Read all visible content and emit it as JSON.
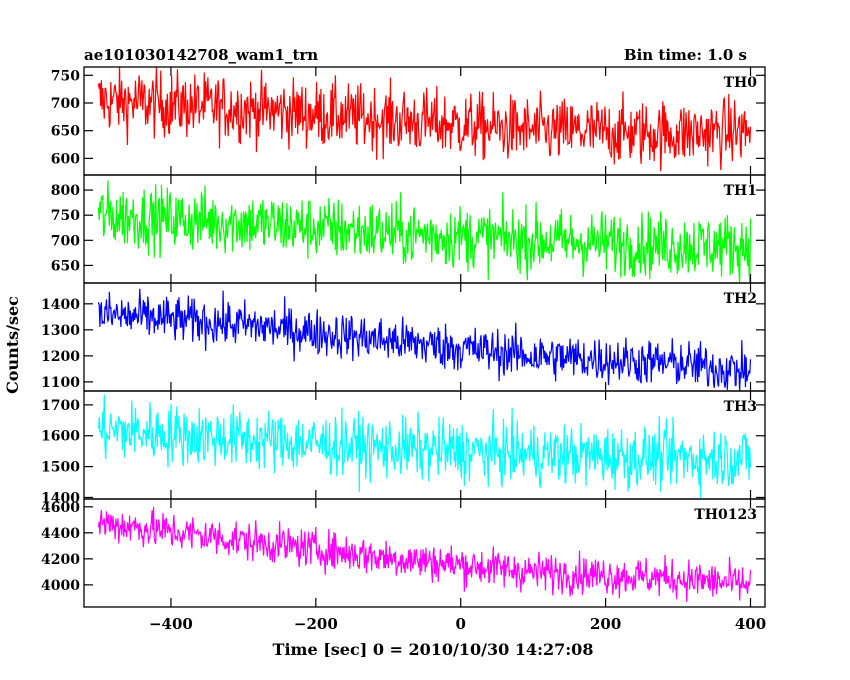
{
  "chart_data": {
    "type": "line",
    "title_left": "ae101030142708_wam1_trn",
    "title_right": "Bin time: 1.0 s",
    "xlabel": "Time [sec] 0 = 2010/10/30 14:27:08",
    "ylabel": "Counts/sec",
    "xlim": [
      -520,
      420
    ],
    "xticks": [
      -400,
      -200,
      0,
      200,
      400
    ],
    "x_step": 1.0,
    "x_range": [
      -500,
      400
    ],
    "panels": [
      {
        "name": "TH0",
        "color": "#ff0000",
        "ylim": [
          570,
          765
        ],
        "yticks": [
          600,
          650,
          700,
          750
        ],
        "trend_x": [
          -500,
          -300,
          -100,
          100,
          300,
          400
        ],
        "trend_y": [
          705,
          690,
          670,
          650,
          645,
          650
        ],
        "noise": 30
      },
      {
        "name": "TH1",
        "color": "#00ff00",
        "ylim": [
          615,
          830
        ],
        "yticks": [
          650,
          700,
          750,
          800
        ],
        "trend_x": [
          -500,
          -300,
          -100,
          100,
          300,
          400
        ],
        "trend_y": [
          750,
          735,
          715,
          700,
          690,
          690
        ],
        "noise": 32
      },
      {
        "name": "TH2",
        "color": "#0000ff",
        "ylim": [
          1065,
          1480
        ],
        "yticks": [
          1100,
          1200,
          1300,
          1400
        ],
        "trend_x": [
          -500,
          -300,
          -100,
          100,
          300,
          400
        ],
        "trend_y": [
          1360,
          1320,
          1260,
          1200,
          1170,
          1140
        ],
        "noise": 45
      },
      {
        "name": "TH3",
        "color": "#00ffff",
        "ylim": [
          1395,
          1745
        ],
        "yticks": [
          1400,
          1500,
          1600,
          1700
        ],
        "trend_x": [
          -500,
          -300,
          -100,
          100,
          300,
          400
        ],
        "trend_y": [
          1620,
          1590,
          1560,
          1540,
          1530,
          1530
        ],
        "noise": 50
      },
      {
        "name": "TH0123",
        "color": "#ff00ff",
        "ylim": [
          3830,
          4660
        ],
        "yticks": [
          4000,
          4200,
          4400,
          4600
        ],
        "trend_x": [
          -500,
          -300,
          -100,
          100,
          300,
          400
        ],
        "trend_y": [
          4480,
          4340,
          4210,
          4100,
          4050,
          4000
        ],
        "noise": 75
      }
    ]
  }
}
